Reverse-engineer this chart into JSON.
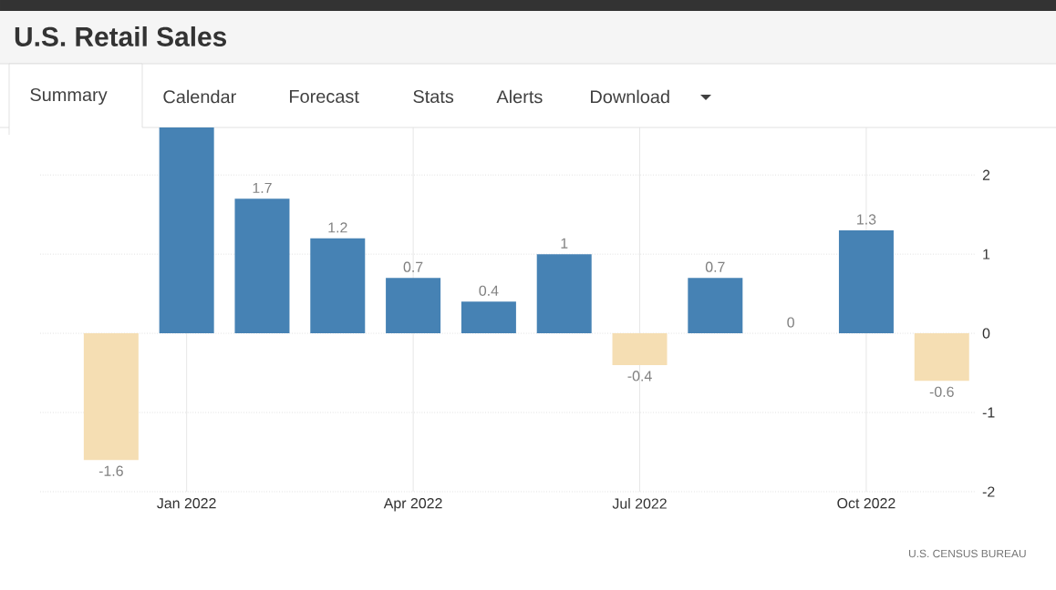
{
  "chart_data": {
    "type": "bar",
    "title": "U.S. Retail Sales",
    "categories": [
      null,
      "Jan 2022",
      null,
      null,
      "Apr 2022",
      null,
      null,
      "Jul 2022",
      null,
      null,
      "Oct 2022",
      null
    ],
    "values": [
      -1.6,
      2.6,
      1.7,
      1.2,
      0.7,
      0.4,
      1,
      -0.4,
      0.7,
      0,
      1.3,
      -0.6
    ],
    "value_labels": [
      "-1.6",
      null,
      "1.7",
      "1.2",
      "0.7",
      "0.4",
      "1",
      "-0.4",
      "0.7",
      "0",
      "1.3",
      "-0.6"
    ],
    "colors": [
      "#f5deb3",
      "#4682b4",
      "#4682b4",
      "#4682b4",
      "#4682b4",
      "#4682b4",
      "#4682b4",
      "#f5deb3",
      "#4682b4",
      "#4682b4",
      "#4682b4",
      "#f5deb3"
    ],
    "ylim": [
      -2,
      2.6
    ],
    "yticks": [
      -2,
      -1,
      0,
      1,
      2
    ],
    "grid": true,
    "annotations": [
      "Summary",
      "Calendar",
      "Forecast",
      "Stats",
      "Alerts",
      "Download",
      "U.S. CENSUS BUREAU"
    ]
  }
}
